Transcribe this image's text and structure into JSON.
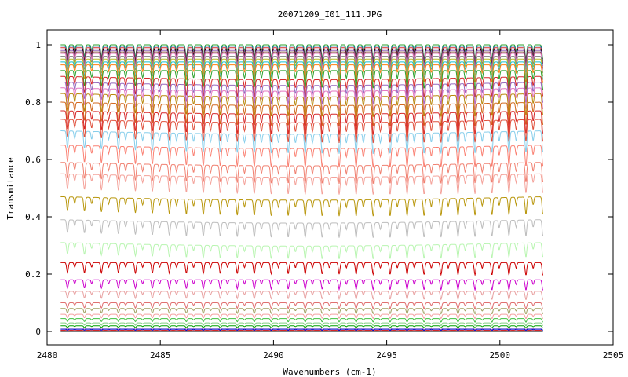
{
  "chart_data": {
    "type": "line",
    "title": "20071209_I01_111.JPG",
    "xlabel": "Wavenumbers (cm-1)",
    "ylabel": "Transmitance",
    "xlim": [
      2480,
      2505
    ],
    "ylim": [
      0,
      1
    ],
    "x_ticks": [
      "2480",
      "2485",
      "2490",
      "2495",
      "2500",
      "2505"
    ],
    "y_ticks": [
      "0",
      "0.2",
      "0.4",
      "0.6",
      "0.8",
      "1"
    ],
    "x_range_of_data": [
      2480.6,
      2501.9
    ],
    "line_spacing_cm1": 0.75,
    "grid": false,
    "legend": "none",
    "series": [
      {
        "baseline": 1.0,
        "color": "#2ca02c"
      },
      {
        "baseline": 0.995,
        "color": "#1f77b4"
      },
      {
        "baseline": 0.99,
        "color": "#d62728"
      },
      {
        "baseline": 0.985,
        "color": "#000000"
      },
      {
        "baseline": 0.98,
        "color": "#9467bd"
      },
      {
        "baseline": 0.975,
        "color": "#8c564b"
      },
      {
        "baseline": 0.97,
        "color": "#e377c2"
      },
      {
        "baseline": 0.96,
        "color": "#7f7f7f"
      },
      {
        "baseline": 0.95,
        "color": "#bcbd22"
      },
      {
        "baseline": 0.94,
        "color": "#17becf"
      },
      {
        "baseline": 0.93,
        "color": "#ff7f0e"
      },
      {
        "baseline": 0.91,
        "color": "#2ca02c"
      },
      {
        "baseline": 0.89,
        "color": "#d62728"
      },
      {
        "baseline": 0.87,
        "color": "#9467bd"
      },
      {
        "baseline": 0.85,
        "color": "#e377c2"
      },
      {
        "baseline": 0.83,
        "color": "#b8860b"
      },
      {
        "baseline": 0.8,
        "color": "#d2691e"
      },
      {
        "baseline": 0.77,
        "color": "#d62728"
      },
      {
        "baseline": 0.74,
        "color": "#e0503c"
      },
      {
        "baseline": 0.7,
        "color": "#87ceeb"
      },
      {
        "baseline": 0.65,
        "color": "#fa8072"
      },
      {
        "baseline": 0.59,
        "color": "#f08070"
      },
      {
        "baseline": 0.55,
        "color": "#f4a29a"
      },
      {
        "baseline": 0.47,
        "color": "#b8960b"
      },
      {
        "baseline": 0.39,
        "color": "#bdbdbd"
      },
      {
        "baseline": 0.31,
        "color": "#b8f5b0"
      },
      {
        "baseline": 0.24,
        "color": "#cc0000"
      },
      {
        "baseline": 0.18,
        "color": "#cc00cc"
      },
      {
        "baseline": 0.14,
        "color": "#e8a0a0"
      },
      {
        "baseline": 0.1,
        "color": "#e07070"
      },
      {
        "baseline": 0.08,
        "color": "#a0a060"
      },
      {
        "baseline": 0.06,
        "color": "#f4a0a0"
      },
      {
        "baseline": 0.045,
        "color": "#40c040"
      },
      {
        "baseline": 0.03,
        "color": "#80d080"
      },
      {
        "baseline": 0.02,
        "color": "#00a000"
      },
      {
        "baseline": 0.012,
        "color": "#9467bd"
      },
      {
        "baseline": 0.008,
        "color": "#0000cc"
      },
      {
        "baseline": 0.004,
        "color": "#d62728"
      },
      {
        "baseline": 0.0,
        "color": "#000000"
      }
    ]
  }
}
